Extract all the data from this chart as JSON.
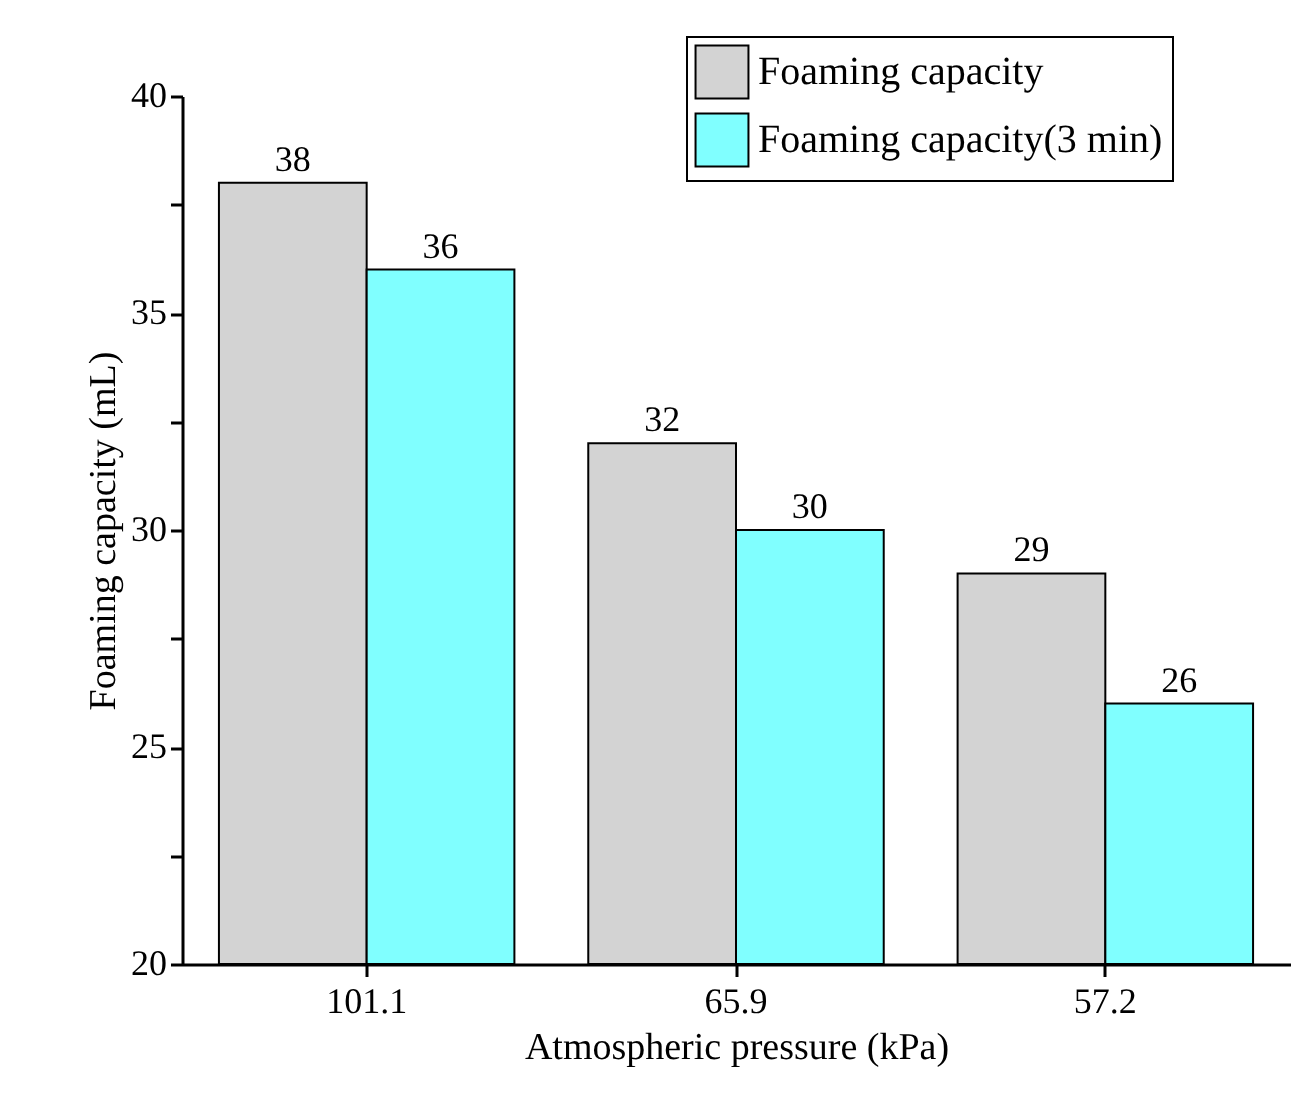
{
  "chart_data": {
    "type": "bar",
    "xlabel": "Atmospheric pressure (kPa)",
    "ylabel": "Foaming capacity (mL)",
    "categories": [
      "101.1",
      "65.9",
      "57.2"
    ],
    "series": [
      {
        "name": "Foaming capacity",
        "color": "#d3d3d3",
        "values": [
          38,
          32,
          29
        ]
      },
      {
        "name": "Foaming capacity(3 min)",
        "color": "#80ffff",
        "values": [
          36,
          30,
          26
        ]
      }
    ],
    "ylim": [
      20,
      40
    ],
    "yticks": [
      20,
      {
        "value": 22.5,
        "label": null
      },
      25,
      {
        "value": 27.5,
        "label": null
      },
      30,
      {
        "value": 32.5,
        "label": null
      },
      35,
      {
        "value": 37.5,
        "label": null
      },
      40
    ],
    "data_labels": true,
    "grid": false,
    "legend": "top right"
  }
}
